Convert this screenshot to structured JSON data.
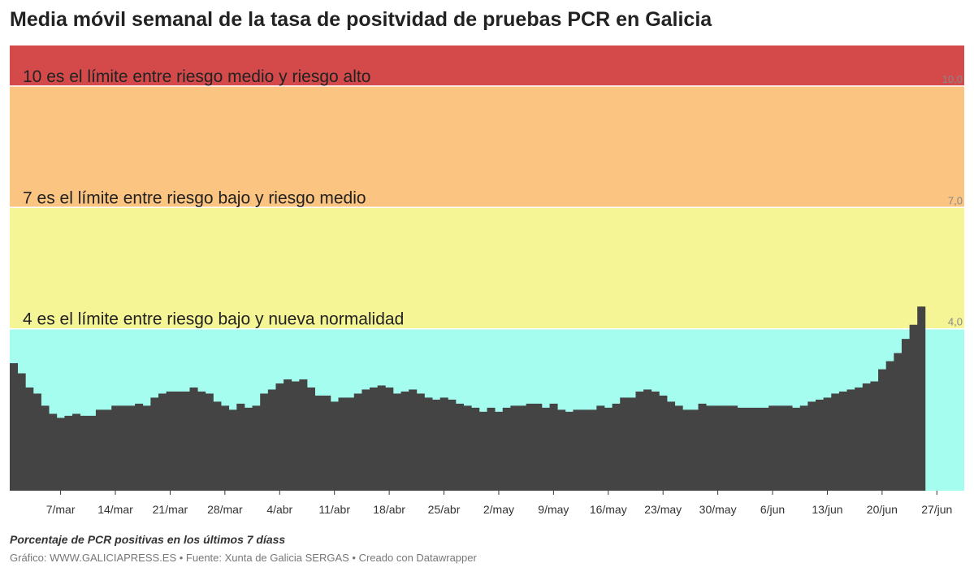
{
  "chart_data": {
    "type": "bar",
    "title": "Media móvil semanal de la tasa de positvidad de pruebas PCR en Galicia",
    "notes": "Porcentaje de PCR positivas en los últimos 7 díass",
    "credits": "Gráfico: WWW.GALICIAPRESS.ES • Fuente: Xunta de Galicia SERGAS • Creado con Datawrapper",
    "ylim": [
      0,
      11
    ],
    "bands": [
      {
        "from": 10,
        "to": 11,
        "color": "#d44a4a",
        "label": "10 es el límite entre riesgo medio y riesgo alto",
        "tick": "10,0"
      },
      {
        "from": 7,
        "to": 10,
        "color": "#fbc480",
        "label": "7 es el límite entre riesgo bajo y riesgo medio",
        "tick": "7,0"
      },
      {
        "from": 4,
        "to": 7,
        "color": "#f5f596",
        "label": "4 es el límite entre riesgo bajo y nueva normalidad",
        "tick": "4,0"
      },
      {
        "from": 0,
        "to": 4,
        "color": "#a5fdf0",
        "label": "",
        "tick": ""
      }
    ],
    "bar_color": "#444444",
    "x_start": "2021-03-01",
    "x_end": "2021-07-01",
    "xticks": [
      {
        "date": "2021-03-07",
        "label": "7/mar"
      },
      {
        "date": "2021-03-14",
        "label": "14/mar"
      },
      {
        "date": "2021-03-21",
        "label": "21/mar"
      },
      {
        "date": "2021-03-28",
        "label": "28/mar"
      },
      {
        "date": "2021-04-04",
        "label": "4/abr"
      },
      {
        "date": "2021-04-11",
        "label": "11/abr"
      },
      {
        "date": "2021-04-18",
        "label": "18/abr"
      },
      {
        "date": "2021-04-25",
        "label": "25/abr"
      },
      {
        "date": "2021-05-02",
        "label": "2/may"
      },
      {
        "date": "2021-05-09",
        "label": "9/may"
      },
      {
        "date": "2021-05-16",
        "label": "16/may"
      },
      {
        "date": "2021-05-23",
        "label": "23/may"
      },
      {
        "date": "2021-05-30",
        "label": "30/may"
      },
      {
        "date": "2021-06-06",
        "label": "6/jun"
      },
      {
        "date": "2021-06-13",
        "label": "13/jun"
      },
      {
        "date": "2021-06-20",
        "label": "20/jun"
      },
      {
        "date": "2021-06-27",
        "label": "27/jun"
      }
    ],
    "start_date": "2021-03-01",
    "values": [
      3.15,
      2.9,
      2.55,
      2.4,
      2.1,
      1.9,
      1.8,
      1.85,
      1.9,
      1.85,
      1.85,
      2.0,
      2.0,
      2.1,
      2.1,
      2.1,
      2.15,
      2.1,
      2.3,
      2.4,
      2.45,
      2.45,
      2.45,
      2.55,
      2.45,
      2.4,
      2.2,
      2.1,
      2.0,
      2.15,
      2.05,
      2.1,
      2.4,
      2.5,
      2.65,
      2.75,
      2.7,
      2.75,
      2.55,
      2.35,
      2.35,
      2.2,
      2.3,
      2.3,
      2.4,
      2.5,
      2.55,
      2.6,
      2.55,
      2.4,
      2.45,
      2.5,
      2.4,
      2.3,
      2.25,
      2.3,
      2.25,
      2.15,
      2.1,
      2.05,
      1.95,
      2.05,
      1.95,
      2.05,
      2.1,
      2.1,
      2.15,
      2.15,
      2.05,
      2.15,
      2.0,
      1.95,
      2.0,
      2.0,
      2.0,
      2.1,
      2.05,
      2.15,
      2.3,
      2.3,
      2.45,
      2.5,
      2.45,
      2.35,
      2.2,
      2.1,
      2.0,
      2.0,
      2.15,
      2.1,
      2.1,
      2.1,
      2.1,
      2.05,
      2.05,
      2.05,
      2.05,
      2.1,
      2.1,
      2.1,
      2.05,
      2.1,
      2.2,
      2.25,
      2.3,
      2.4,
      2.45,
      2.5,
      2.55,
      2.65,
      2.7,
      3.0,
      3.2,
      3.4,
      3.75,
      4.1,
      4.55
    ]
  }
}
